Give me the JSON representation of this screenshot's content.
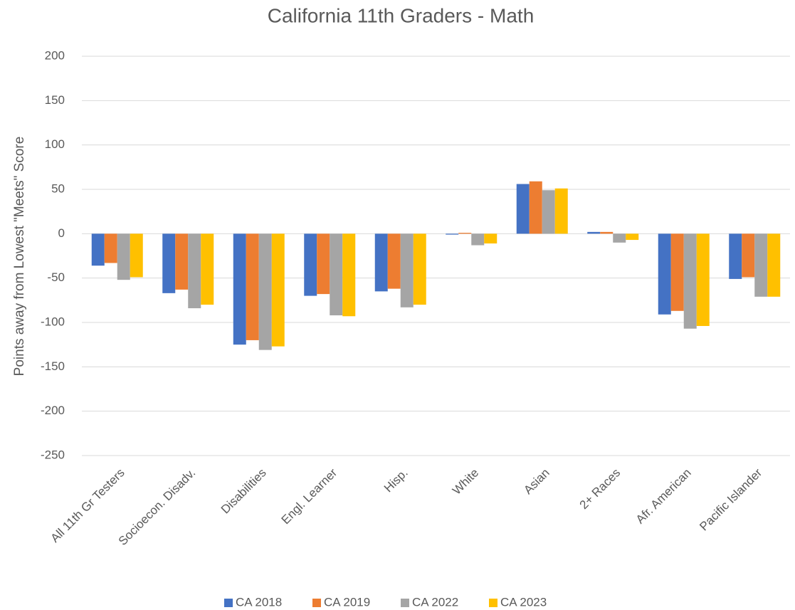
{
  "chart_data": {
    "type": "bar",
    "title": "California 11th Graders - Math",
    "y_label": "Points away from Lowest \"Meets\" Score",
    "categories": [
      "All 11th Gr Testers",
      "Socioecon. Disadv.",
      "Disabilities",
      "Engl. Learner",
      "Hisp.",
      "White",
      "Asian",
      "2+ Races",
      "Afr. American",
      "Pacific Islander"
    ],
    "series": [
      {
        "name": "CA 2018",
        "color": "#4472c4",
        "values": [
          -36,
          -67,
          -125,
          -70,
          -65,
          -1,
          56,
          2,
          -91,
          -51
        ]
      },
      {
        "name": "CA 2019",
        "color": "#ed7d31",
        "values": [
          -33,
          -63,
          -120,
          -68,
          -62,
          1,
          59,
          2,
          -87,
          -49
        ]
      },
      {
        "name": "CA 2022",
        "color": "#a5a5a5",
        "values": [
          -52,
          -84,
          -131,
          -92,
          -83,
          -13,
          49,
          -10,
          -107,
          -71
        ]
      },
      {
        "name": "CA 2023",
        "color": "#ffc000",
        "values": [
          -49,
          -80,
          -127,
          -93,
          -80,
          -11,
          51,
          -7,
          -104,
          -71
        ]
      }
    ],
    "ylim": [
      -250,
      200
    ],
    "yticks": [
      -250,
      -200,
      -150,
      -100,
      -50,
      0,
      50,
      100,
      150,
      200
    ],
    "grid": true,
    "legend": "bottom"
  }
}
